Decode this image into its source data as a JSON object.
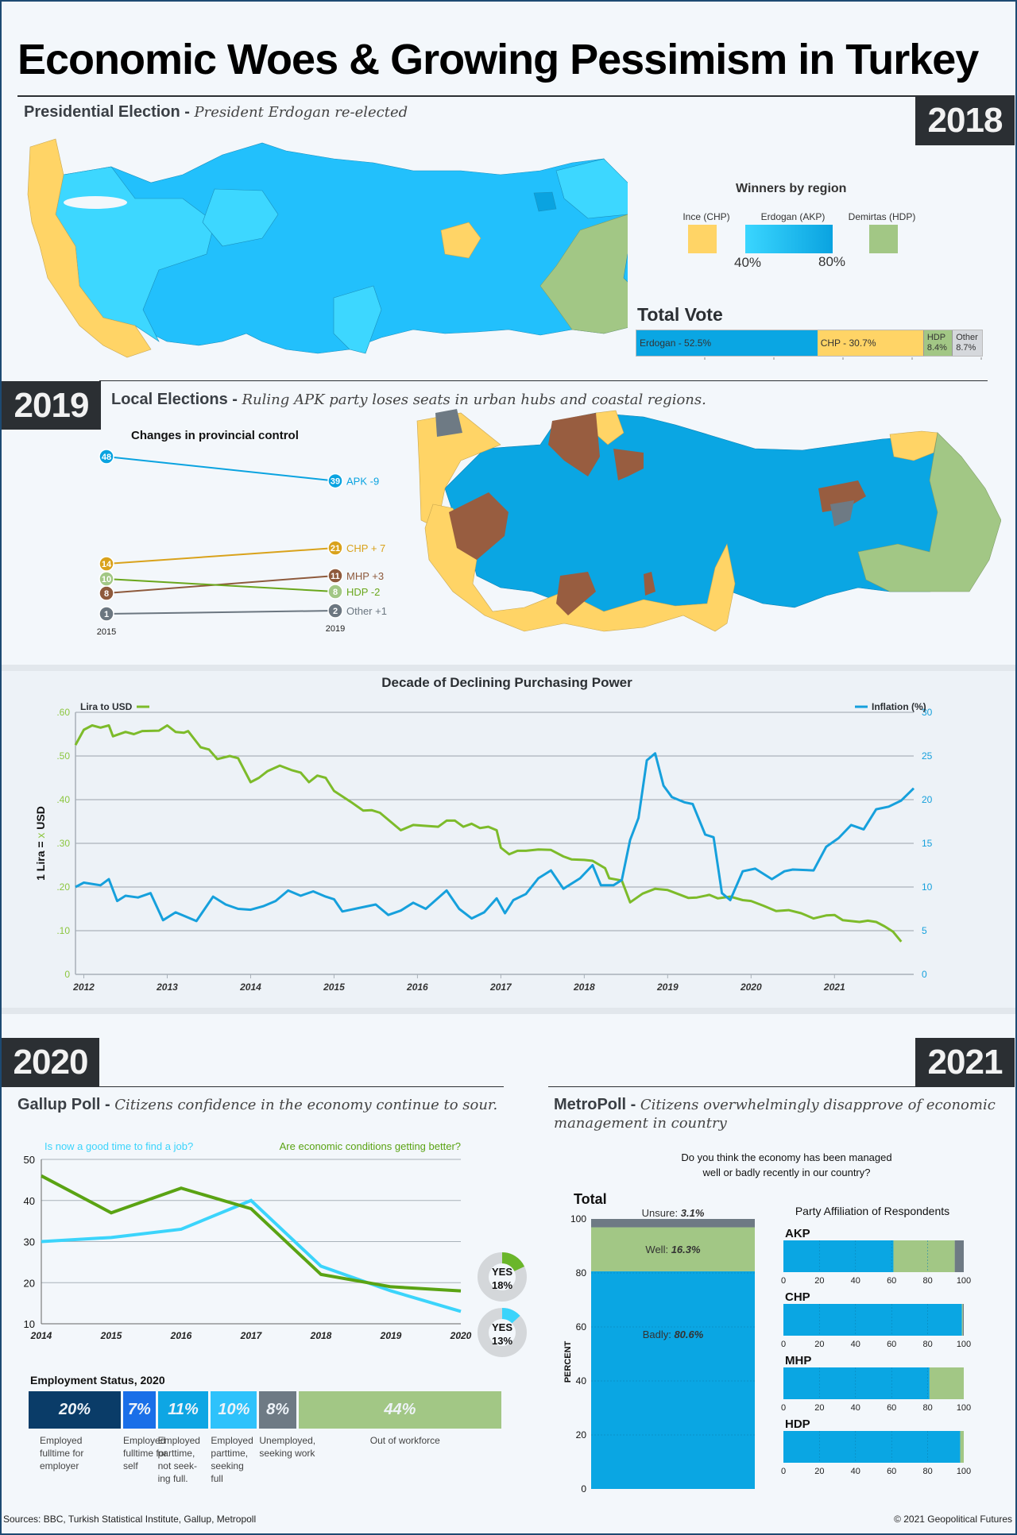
{
  "title": "Economic Woes & Growing Pessimism in Turkey",
  "sections": {
    "y2018": {
      "year": "2018",
      "heading": "Presidential Election",
      "subheading": "President Erdogan re-elected",
      "legend": {
        "title": "Winners by region",
        "items": [
          {
            "label": "Ince (CHP)",
            "color": "#ffd466"
          },
          {
            "label": "Erdogan (AKP)",
            "color_from": "#3ad6ff",
            "color_to": "#0aa3e0",
            "min_label": "40%",
            "max_label": "80%"
          },
          {
            "label": "Demirtas (HDP)",
            "color": "#a2c785"
          }
        ]
      },
      "total_vote": {
        "title": "Total Vote",
        "segments": [
          {
            "label": "Erdogan - 52.5%",
            "value": 52.5,
            "color": "#0aa6e3"
          },
          {
            "label": "CHP - 30.7%",
            "value": 30.7,
            "color": "#ffd466"
          },
          {
            "label": "HDP 8.4%",
            "value": 8.4,
            "color": "#a2c785"
          },
          {
            "label": "Other 8.7%",
            "value": 8.7,
            "color": "#d5d8dc"
          }
        ]
      }
    },
    "y2019": {
      "year": "2019",
      "heading": "Local Elections",
      "subheading": "Ruling APK party loses seats in urban hubs and coastal regions.",
      "slope_title": "Changes in provincial control",
      "x_labels": [
        "2015",
        "2019"
      ]
    },
    "y2020": {
      "year": "2020",
      "heading": "Gallup Poll",
      "subheading": "Citizens confidence in the economy continue to sour.",
      "employment_title": "Employment Status, 2020"
    },
    "y2021": {
      "year": "2021",
      "heading": "MetroPoll",
      "subheading": "Citizens overwhelmingly disapprove of economic management in country",
      "question_line1": "Do you think the economy has been managed",
      "question_line2": "well or badly recently in our country?",
      "total_label": "Total",
      "party_title": "Party Affiliation of Respondents",
      "percent_axis": "PERCENT"
    }
  },
  "footer": {
    "sources": "Sources: BBC, Turkish Statistical Institute, Gallup, Metropoll",
    "copyright": "© 2021 Geopolitical Futures"
  },
  "chart_data": [
    {
      "id": "slope-2019",
      "type": "line",
      "title": "Changes in provincial control",
      "x": [
        "2015",
        "2019"
      ],
      "series": [
        {
          "name": "APK",
          "values": [
            48,
            39
          ],
          "change_label": "APK -9",
          "color": "#0aa3e0"
        },
        {
          "name": "CHP",
          "values": [
            14,
            21
          ],
          "change_label": "CHP + 7",
          "color": "#d9a21b"
        },
        {
          "name": "MHP",
          "values": [
            8,
            11
          ],
          "change_label": "MHP +3",
          "color": "#8e5a3c"
        },
        {
          "name": "HDP",
          "values": [
            10,
            8
          ],
          "change_label": "HDP -2",
          "color": "#6aa71c"
        },
        {
          "name": "Other",
          "values": [
            1,
            2
          ],
          "change_label": "Other +1",
          "color": "#6b7680"
        }
      ]
    },
    {
      "id": "purchasing-power",
      "type": "line",
      "title": "Decade of Declining Purchasing Power",
      "xlabel": "",
      "ylabel_left": "1 Lira = x USD",
      "x_ticks": [
        "2012",
        "2013",
        "2014",
        "2015",
        "2016",
        "2017",
        "2018",
        "2019",
        "2020",
        "2021"
      ],
      "x_range": [
        2011.9,
        2021.95
      ],
      "y_left": {
        "range": [
          0,
          0.6
        ],
        "ticks": [
          "0",
          ".10",
          ".20",
          ".30",
          ".40",
          ".50",
          ".60"
        ]
      },
      "y_right": {
        "range": [
          0,
          30
        ],
        "ticks": [
          "0",
          "5",
          "10",
          "15",
          "20",
          "25",
          "30"
        ]
      },
      "grid": true,
      "legend": [
        {
          "name": "Lira to USD",
          "position": "top-left",
          "color": "#7dbb2a"
        },
        {
          "name": "Inflation (%)",
          "position": "top-right",
          "color": "#16a0dc"
        }
      ],
      "series": [
        {
          "name": "Lira to USD",
          "axis": "left",
          "color": "#7dbb2a",
          "points": [
            [
              2011.9,
              0.525
            ],
            [
              2012.0,
              0.56
            ],
            [
              2012.1,
              0.57
            ],
            [
              2012.2,
              0.565
            ],
            [
              2012.3,
              0.57
            ],
            [
              2012.35,
              0.545
            ],
            [
              2012.5,
              0.555
            ],
            [
              2012.6,
              0.55
            ],
            [
              2012.7,
              0.557
            ],
            [
              2012.9,
              0.558
            ],
            [
              2013.0,
              0.57
            ],
            [
              2013.1,
              0.555
            ],
            [
              2013.2,
              0.553
            ],
            [
              2013.25,
              0.557
            ],
            [
              2013.4,
              0.52
            ],
            [
              2013.5,
              0.515
            ],
            [
              2013.6,
              0.493
            ],
            [
              2013.75,
              0.5
            ],
            [
              2013.85,
              0.495
            ],
            [
              2014.0,
              0.44
            ],
            [
              2014.1,
              0.45
            ],
            [
              2014.2,
              0.465
            ],
            [
              2014.35,
              0.478
            ],
            [
              2014.5,
              0.467
            ],
            [
              2014.6,
              0.462
            ],
            [
              2014.7,
              0.44
            ],
            [
              2014.8,
              0.455
            ],
            [
              2014.9,
              0.45
            ],
            [
              2015.0,
              0.42
            ],
            [
              2015.2,
              0.395
            ],
            [
              2015.35,
              0.375
            ],
            [
              2015.45,
              0.376
            ],
            [
              2015.55,
              0.37
            ],
            [
              2015.8,
              0.33
            ],
            [
              2015.95,
              0.342
            ],
            [
              2016.1,
              0.34
            ],
            [
              2016.25,
              0.338
            ],
            [
              2016.35,
              0.352
            ],
            [
              2016.45,
              0.352
            ],
            [
              2016.55,
              0.338
            ],
            [
              2016.65,
              0.345
            ],
            [
              2016.75,
              0.335
            ],
            [
              2016.85,
              0.338
            ],
            [
              2016.95,
              0.33
            ],
            [
              2017.0,
              0.29
            ],
            [
              2017.1,
              0.275
            ],
            [
              2017.2,
              0.283
            ],
            [
              2017.3,
              0.283
            ],
            [
              2017.45,
              0.286
            ],
            [
              2017.6,
              0.285
            ],
            [
              2017.75,
              0.27
            ],
            [
              2017.85,
              0.263
            ],
            [
              2018.0,
              0.262
            ],
            [
              2018.1,
              0.26
            ],
            [
              2018.25,
              0.243
            ],
            [
              2018.3,
              0.22
            ],
            [
              2018.45,
              0.215
            ],
            [
              2018.55,
              0.165
            ],
            [
              2018.7,
              0.185
            ],
            [
              2018.85,
              0.196
            ],
            [
              2019.0,
              0.193
            ],
            [
              2019.25,
              0.175
            ],
            [
              2019.35,
              0.176
            ],
            [
              2019.5,
              0.182
            ],
            [
              2019.6,
              0.174
            ],
            [
              2019.75,
              0.178
            ],
            [
              2019.9,
              0.17
            ],
            [
              2020.0,
              0.168
            ],
            [
              2020.15,
              0.157
            ],
            [
              2020.3,
              0.145
            ],
            [
              2020.45,
              0.147
            ],
            [
              2020.6,
              0.14
            ],
            [
              2020.75,
              0.128
            ],
            [
              2020.9,
              0.135
            ],
            [
              2021.0,
              0.136
            ],
            [
              2021.1,
              0.124
            ],
            [
              2021.3,
              0.12
            ],
            [
              2021.4,
              0.123
            ],
            [
              2021.5,
              0.12
            ],
            [
              2021.6,
              0.11
            ],
            [
              2021.7,
              0.098
            ],
            [
              2021.8,
              0.075
            ]
          ]
        },
        {
          "name": "Inflation (%)",
          "axis": "right",
          "color": "#16a0dc",
          "points": [
            [
              2011.9,
              10.0
            ],
            [
              2012.0,
              10.5
            ],
            [
              2012.2,
              10.2
            ],
            [
              2012.3,
              10.9
            ],
            [
              2012.4,
              8.4
            ],
            [
              2012.5,
              9.0
            ],
            [
              2012.65,
              8.8
            ],
            [
              2012.8,
              9.3
            ],
            [
              2012.95,
              6.2
            ],
            [
              2013.1,
              7.1
            ],
            [
              2013.2,
              6.7
            ],
            [
              2013.35,
              6.1
            ],
            [
              2013.55,
              8.9
            ],
            [
              2013.7,
              8.0
            ],
            [
              2013.85,
              7.5
            ],
            [
              2014.0,
              7.4
            ],
            [
              2014.15,
              7.8
            ],
            [
              2014.3,
              8.4
            ],
            [
              2014.45,
              9.6
            ],
            [
              2014.6,
              9.0
            ],
            [
              2014.75,
              9.5
            ],
            [
              2014.9,
              8.9
            ],
            [
              2015.0,
              8.6
            ],
            [
              2015.1,
              7.2
            ],
            [
              2015.3,
              7.6
            ],
            [
              2015.5,
              8.0
            ],
            [
              2015.65,
              6.8
            ],
            [
              2015.8,
              7.3
            ],
            [
              2015.95,
              8.2
            ],
            [
              2016.1,
              7.5
            ],
            [
              2016.35,
              9.6
            ],
            [
              2016.5,
              7.5
            ],
            [
              2016.65,
              6.4
            ],
            [
              2016.8,
              7.1
            ],
            [
              2016.95,
              8.7
            ],
            [
              2017.05,
              7.0
            ],
            [
              2017.15,
              8.5
            ],
            [
              2017.3,
              9.2
            ],
            [
              2017.45,
              11.0
            ],
            [
              2017.6,
              11.9
            ],
            [
              2017.75,
              9.8
            ],
            [
              2017.95,
              11.0
            ],
            [
              2018.1,
              12.5
            ],
            [
              2018.2,
              10.2
            ],
            [
              2018.35,
              10.2
            ],
            [
              2018.45,
              10.8
            ],
            [
              2018.55,
              15.4
            ],
            [
              2018.65,
              17.9
            ],
            [
              2018.75,
              24.5
            ],
            [
              2018.85,
              25.3
            ],
            [
              2018.95,
              21.6
            ],
            [
              2019.05,
              20.3
            ],
            [
              2019.2,
              19.7
            ],
            [
              2019.3,
              19.5
            ],
            [
              2019.45,
              16.0
            ],
            [
              2019.55,
              15.7
            ],
            [
              2019.65,
              9.3
            ],
            [
              2019.75,
              8.5
            ],
            [
              2019.9,
              11.8
            ],
            [
              2020.05,
              12.1
            ],
            [
              2020.25,
              10.9
            ],
            [
              2020.4,
              11.8
            ],
            [
              2020.5,
              12.0
            ],
            [
              2020.75,
              11.9
            ],
            [
              2020.9,
              14.6
            ],
            [
              2021.05,
              15.6
            ],
            [
              2021.2,
              17.1
            ],
            [
              2021.35,
              16.6
            ],
            [
              2021.5,
              18.9
            ],
            [
              2021.65,
              19.2
            ],
            [
              2021.8,
              19.9
            ],
            [
              2021.95,
              21.3
            ]
          ]
        }
      ]
    },
    {
      "id": "gallup",
      "type": "line",
      "title": "",
      "x": [
        "2014",
        "2015",
        "2016",
        "2017",
        "2018",
        "2019",
        "2020"
      ],
      "ylim": [
        10,
        50
      ],
      "y_ticks": [
        "10",
        "20",
        "30",
        "40",
        "50"
      ],
      "grid": true,
      "series": [
        {
          "name": "Is now a good time to find a job?",
          "values": [
            30,
            31,
            33,
            40,
            24,
            18,
            13
          ],
          "color": "#3bd4fb"
        },
        {
          "name": "Are economic conditions getting better?",
          "values": [
            46,
            37,
            43,
            38,
            22,
            19,
            18
          ],
          "color": "#5aa313"
        }
      ],
      "donuts": [
        {
          "label": "YES",
          "value_label": "18%",
          "value": 18,
          "color": "#6ab62a"
        },
        {
          "label": "YES",
          "value_label": "13%",
          "value": 13,
          "color": "#3bd4fb"
        }
      ]
    },
    {
      "id": "employment",
      "type": "bar",
      "title": "Employment Status, 2020",
      "categories": [
        "Employed fulltime for employer",
        "Employed fulltime for self",
        "Employed parttime, not seek-ing full.",
        "Employed parttime, seeking full",
        "Unemployed, seeking work",
        "Out of workforce"
      ],
      "values": [
        20,
        7,
        11,
        10,
        8,
        44
      ],
      "labels": [
        "20%",
        "7%",
        "11%",
        "10%",
        "8%",
        "44%"
      ],
      "colors": [
        "#0a3c68",
        "#1a6fe8",
        "#0ea6e4",
        "#2ec2fb",
        "#6e7a84",
        "#a2c785"
      ]
    },
    {
      "id": "metropoll-total",
      "type": "bar",
      "title": "Total",
      "ylabel": "PERCENT",
      "ylim": [
        0,
        100
      ],
      "y_ticks": [
        "0",
        "20",
        "40",
        "60",
        "80",
        "100"
      ],
      "series": [
        {
          "name": "Badly",
          "value": 80.6,
          "label": "Badly: ",
          "value_label": "80.6%",
          "color": "#0aa6e3"
        },
        {
          "name": "Well",
          "value": 16.3,
          "label": "Well: ",
          "value_label": "16.3%",
          "color": "#a2c785"
        },
        {
          "name": "Unsure",
          "value": 3.1,
          "label": "Unsure: ",
          "value_label": "3.1%",
          "color": "#6e7a84"
        }
      ]
    },
    {
      "id": "metropoll-party",
      "type": "bar",
      "title": "Party Affiliation of Respondents",
      "x_ticks": [
        "0",
        "20",
        "40",
        "60",
        "80",
        "100"
      ],
      "categories": [
        "AKP",
        "CHP",
        "MHP",
        "HDP"
      ],
      "series": [
        {
          "name": "Badly",
          "values": [
            61,
            99,
            81,
            98
          ],
          "color": "#0aa6e3"
        },
        {
          "name": "Well",
          "values": [
            34,
            0.5,
            19,
            2
          ],
          "color": "#a2c785"
        },
        {
          "name": "Unsure",
          "values": [
            5,
            0.5,
            0,
            0
          ],
          "color": "#6e7a84"
        }
      ]
    }
  ]
}
